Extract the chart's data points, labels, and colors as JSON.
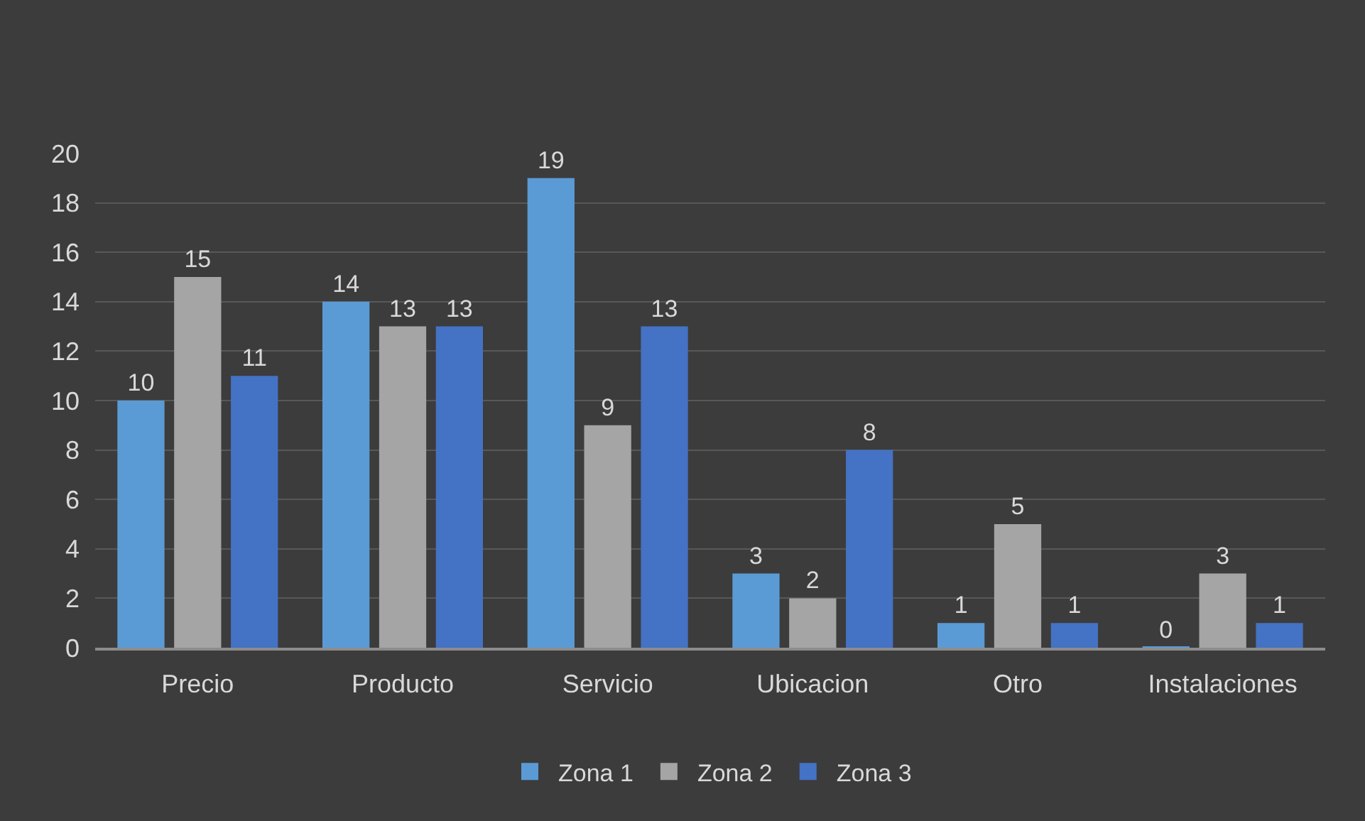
{
  "chart_data": {
    "type": "bar",
    "categories": [
      "Precio",
      "Producto",
      "Servicio",
      "Ubicacion",
      "Otro",
      "Instalaciones"
    ],
    "series": [
      {
        "name": "Zona 1",
        "color": "#5b9bd5",
        "values": [
          10,
          14,
          19,
          3,
          1,
          0
        ]
      },
      {
        "name": "Zona 2",
        "color": "#a5a5a5",
        "values": [
          15,
          13,
          9,
          2,
          5,
          3
        ]
      },
      {
        "name": "Zona 3",
        "color": "#4472c4",
        "values": [
          11,
          13,
          13,
          8,
          1,
          1
        ]
      }
    ],
    "ylim": [
      0,
      20
    ],
    "yticks": [
      0,
      2,
      4,
      6,
      8,
      10,
      12,
      14,
      16,
      18,
      20
    ],
    "grid": "y",
    "legend": "bottom",
    "data_labels": true
  }
}
